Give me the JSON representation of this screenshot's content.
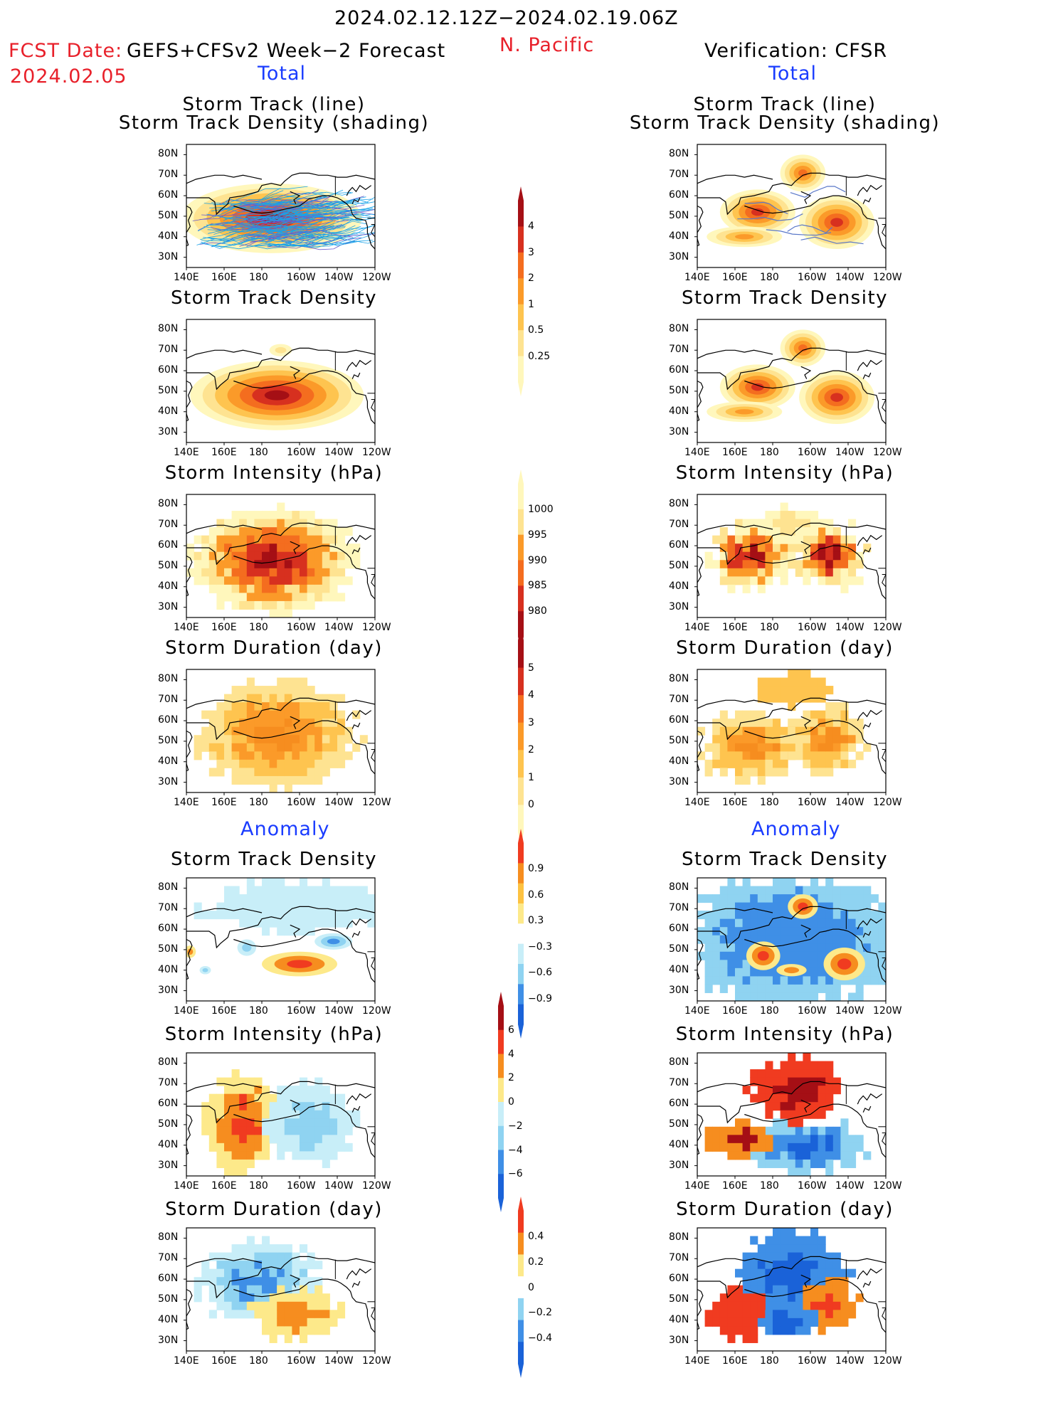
{
  "header": {
    "period": "2024.02.12.12Z−2024.02.19.06Z",
    "fcst_label": "FCST Date:",
    "fcst_model": "GEFS+CFSv2 Week−2 Forecast",
    "fcst_date": "2024.02.05",
    "region": "N. Pacific",
    "verification": "Verification: CFSR",
    "total_left": "Total",
    "total_right": "Total",
    "anomaly_left": "Anomaly",
    "anomaly_right": "Anomaly"
  },
  "panel_titles": {
    "track_line": "Storm Track (line)",
    "track_shading": "Storm Track Density (shading)",
    "density": "Storm Track Density",
    "intensity": "Storm Intensity (hPa)",
    "duration": "Storm Duration (day)"
  },
  "axes": {
    "y_ticks": [
      "80N",
      "70N",
      "60N",
      "50N",
      "40N",
      "30N"
    ],
    "x_ticks": [
      "140E",
      "160E",
      "180",
      "160W",
      "140W",
      "120W"
    ]
  },
  "colorbars": {
    "density_total": {
      "labels": [
        "4",
        "3",
        "2",
        "1",
        "0.5",
        "0.25"
      ],
      "colors": [
        "#a50f15",
        "#d7301f",
        "#f46d1f",
        "#fb9a29",
        "#fec44f",
        "#fee391",
        "#fff7bc"
      ]
    },
    "intensity_total": {
      "labels": [
        "1000",
        "995",
        "990",
        "985",
        "980"
      ],
      "colors": [
        "#fff7bc",
        "#fee391",
        "#fb9a29",
        "#f46d1f",
        "#d7301f",
        "#a50f15"
      ]
    },
    "duration_total": {
      "labels": [
        "5",
        "4",
        "3",
        "2",
        "1",
        "0"
      ],
      "colors": [
        "#a50f15",
        "#d7301f",
        "#f46d1f",
        "#fb9a29",
        "#fec44f",
        "#fee391",
        "#fff7bc"
      ]
    },
    "density_anom": {
      "labels": [
        "0.9",
        "0.6",
        "0.3",
        "−0.3",
        "−0.6",
        "−0.9"
      ],
      "colors": [
        "#f03b20",
        "#f68d1f",
        "#fdc241",
        "#fde98a",
        "#ffffff",
        "#c8eef8",
        "#8fd3f1",
        "#3f8fe6",
        "#1a62d8"
      ]
    },
    "intensity_anom": {
      "labels": [
        "6",
        "4",
        "2",
        "0",
        "−2",
        "−4",
        "−6"
      ],
      "colors": [
        "#a50f15",
        "#f03b20",
        "#f68d1f",
        "#fde98a",
        "#c8eef8",
        "#8fd3f1",
        "#3f8fe6",
        "#1a62d8"
      ]
    },
    "duration_anom": {
      "labels": [
        "0.4",
        "0.2",
        "0",
        "−0.2",
        "−0.4"
      ],
      "colors": [
        "#f03b20",
        "#f68d1f",
        "#fde98a",
        "#ffffff",
        "#8fd3f1",
        "#3f8fe6",
        "#1a62d8"
      ]
    }
  }
}
